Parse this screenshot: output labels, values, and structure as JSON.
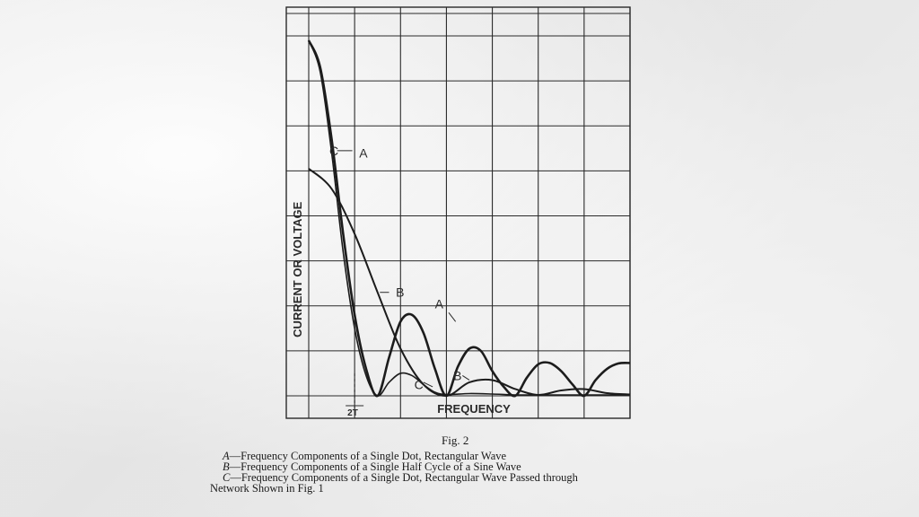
{
  "chart_data": {
    "type": "line",
    "title": "Fig. 2",
    "xlabel": "FREQUENCY",
    "ylabel": "CURRENT OR VOLTAGE",
    "x_tick_label": "2T",
    "grid": true,
    "xlim": [
      0,
      7
    ],
    "ylim": [
      0,
      8
    ],
    "series": [
      {
        "name": "A",
        "x": [
          0,
          0.25,
          0.5,
          0.75,
          1.0,
          1.25,
          1.5,
          1.75,
          2.0,
          2.25,
          2.5,
          2.75,
          3.0,
          3.25,
          3.5,
          3.75,
          4.0,
          4.25,
          4.5,
          4.75,
          5.0,
          5.25,
          5.5,
          5.75,
          6.0,
          6.25,
          6.5,
          6.75,
          7.0
        ],
        "values": [
          7.9,
          7.3,
          5.7,
          3.6,
          1.8,
          0.6,
          0.0,
          0.85,
          1.65,
          1.8,
          1.4,
          0.6,
          0.0,
          0.65,
          1.05,
          1.0,
          0.55,
          0.2,
          0.0,
          0.4,
          0.7,
          0.73,
          0.55,
          0.25,
          0.0,
          0.35,
          0.6,
          0.72,
          0.73
        ]
      },
      {
        "name": "B",
        "x": [
          0,
          0.5,
          1.0,
          1.5,
          2.0,
          2.5,
          3.0,
          3.5,
          4.0,
          4.5,
          5.0,
          5.5,
          6.0,
          6.5,
          7.0
        ],
        "values": [
          5.05,
          4.6,
          3.6,
          2.3,
          1.05,
          0.25,
          0.0,
          0.3,
          0.35,
          0.15,
          0.02,
          0.12,
          0.15,
          0.06,
          0.03
        ]
      },
      {
        "name": "C",
        "x": [
          0,
          0.25,
          0.5,
          0.75,
          1.0,
          1.25,
          1.5,
          1.75,
          2.0,
          2.25,
          2.5,
          2.75,
          3.0,
          3.5,
          4.0,
          4.5,
          5.0,
          5.5,
          6.0,
          6.5,
          7.0
        ],
        "values": [
          7.9,
          7.2,
          5.4,
          3.2,
          1.5,
          0.45,
          0.0,
          0.3,
          0.5,
          0.45,
          0.25,
          0.08,
          0.03,
          0.05,
          0.04,
          0.02,
          0.02,
          0.02,
          0.02,
          0.02,
          0.02
        ]
      }
    ],
    "annotations": [
      "C",
      "A",
      "B",
      "A",
      "C",
      "B"
    ]
  },
  "caption": {
    "a_letter": "A",
    "a_text": "—Frequency Components of a Single Dot, Rectangular Wave",
    "b_letter": "B",
    "b_text": "—Frequency Components of a Single Half Cycle of a Sine Wave",
    "c_letter": "C",
    "c_text": "—Frequency Components of a Single Dot, Rectangular Wave Passed through",
    "c_text2": "Network Shown in Fig. 1"
  }
}
